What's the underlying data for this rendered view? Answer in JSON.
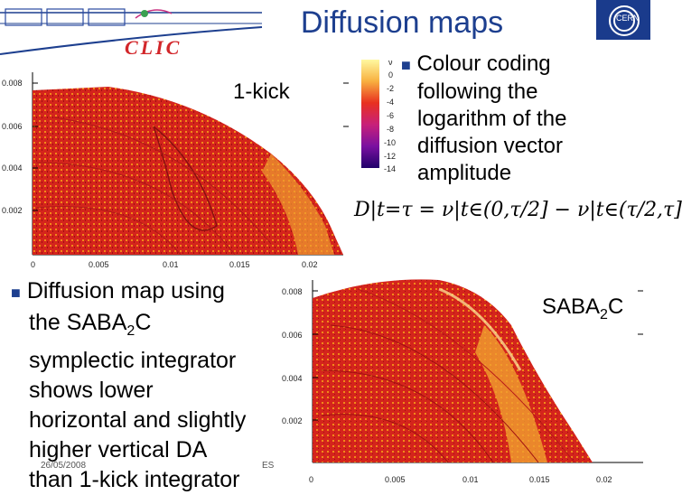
{
  "header": {
    "title": "Diffusion maps",
    "clic_label": "CLIC",
    "cern_label": "CERN"
  },
  "plot_top": {
    "label": "1-kick",
    "y_ticks": [
      "0.008",
      "0.006",
      "0.004",
      "0.002"
    ],
    "x_ticks": [
      "0",
      "0.005",
      "0.01",
      "0.015",
      "0.02"
    ]
  },
  "colorbar": {
    "ticks": [
      "0",
      "-2",
      "-4",
      "-6",
      "-8",
      "-10",
      "-12",
      "-14"
    ],
    "top_label": "ν"
  },
  "bullet_colour": {
    "lines": [
      "Colour coding",
      "following the",
      "logarithm of the",
      "diffusion vector",
      "amplitude"
    ]
  },
  "formula": "D|t=τ = ν|t∈(0,τ/2] − ν|t∈(τ/2,τ]",
  "bullet_diffusion": {
    "lines": [
      "Diffusion map using",
      "the SABA",
      "symplectic integrator",
      "shows lower",
      "horizontal and slightly",
      "higher vertical DA",
      "than 1-kick integrator"
    ],
    "sub": "2",
    "after_sub": "C"
  },
  "plot_bottom": {
    "label_main": "SABA",
    "label_sub": "2",
    "label_tail": "C",
    "y_ticks": [
      "0.008",
      "0.006",
      "0.004",
      "0.002"
    ],
    "x_ticks": [
      "0",
      "0.005",
      "0.01",
      "0.015",
      "0.02"
    ]
  },
  "footer": {
    "date": "26/05/2008",
    "page_fragment": "ES"
  },
  "colors": {
    "title": "#1d3f8f",
    "clic": "#d2262a",
    "map_red": "#d4241c",
    "map_orange": "#f08a1a"
  }
}
